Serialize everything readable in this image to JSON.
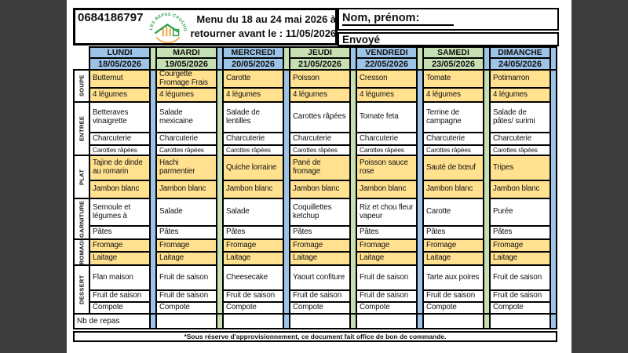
{
  "header": {
    "phone": "0684186797",
    "logo_text": "LES REPAS CAUCHOIS",
    "menu_title_line1": "Menu du 18 au 24 mai 2026 à",
    "menu_title_line2": "retourner avant le : 11/05/2026",
    "name_label": "Nom, prénom:",
    "sent_label": "Envoyé"
  },
  "colors": {
    "blue": "#9DC3E6",
    "green": "#C6E0B4",
    "yellow": "#FFE18F",
    "white": "#FFFFFF",
    "backdrop": "#3C3C3C",
    "border": "#000000",
    "logo_green": "#2F9E49",
    "logo_orange": "#F2A33C"
  },
  "days": [
    {
      "name": "LUNDI",
      "date": "18/05/2026",
      "color": "blue"
    },
    {
      "name": "MARDI",
      "date": "19/05/2026",
      "color": "green"
    },
    {
      "name": "MERCREDI",
      "date": "20/05/2026",
      "color": "blue"
    },
    {
      "name": "JEUDI",
      "date": "21/05/2026",
      "color": "green"
    },
    {
      "name": "VENDREDI",
      "date": "22/05/2026",
      "color": "blue"
    },
    {
      "name": "SAMEDI",
      "date": "23/05/2026",
      "color": "green"
    },
    {
      "name": "DIMANCHE",
      "date": "24/05/2026",
      "color": "blue"
    }
  ],
  "sections": [
    {
      "label": "SOUPE",
      "bg": "yellow",
      "rows": [
        [
          "Butternut",
          "Courgette Fromage Frais",
          "Carotte",
          "Poisson",
          "Cresson",
          "Tomate",
          "Potimarron"
        ],
        [
          "4 légumes",
          "4 légumes",
          "4 légumes",
          "4 légumes",
          "4 légumes",
          "4 légumes",
          "4 légumes"
        ]
      ]
    },
    {
      "label": "ENTREE",
      "bg": "white",
      "rows": [
        [
          "Betteraves vinaigrette",
          "Salade mexicaine",
          "Salade de lentilles",
          "Carottes râpées",
          "Tomate feta",
          "Terrine de campagne",
          "Salade de pâtes/ surimi"
        ],
        [
          "Charcuterie",
          "Charcuterie",
          "Charcuterie",
          "Charcuterie",
          "Charcuterie",
          "Charcuterie",
          "Charcuterie"
        ],
        [
          "Carottes râpées",
          "Carottes râpées",
          "Carottes râpées",
          "Carottes râpées",
          "Carottes râpées",
          "Carottes râpées",
          "Carottes râpées"
        ]
      ]
    },
    {
      "label": "PLAT",
      "bg": "yellow",
      "rows": [
        [
          "Tajine de dinde au romarin",
          "Hachi parmentier",
          "Quiche lorraine",
          "Pané de fromage",
          "Poisson sauce rose",
          "Sauté de bœuf",
          "Tripes"
        ],
        [
          "Jambon blanc",
          "Jambon blanc",
          "Jambon blanc",
          "Jambon blanc",
          "Jambon blanc",
          "Jambon blanc",
          "Jambon blanc"
        ]
      ]
    },
    {
      "label": "GARNITURE",
      "bg": "white",
      "rows": [
        [
          "Semoule et légumes à",
          "Salade",
          "Salade",
          "Coquillettes ketchup",
          "Riz et chou fleur vapeur",
          "Carotte",
          "Purée"
        ],
        [
          "Pâtes",
          "Pâtes",
          "Pâtes",
          "Pâtes",
          "Pâtes",
          "Pâtes",
          "Pâtes"
        ]
      ]
    },
    {
      "label": "FROMAGE",
      "bg": "yellow",
      "rows": [
        [
          "Fromage",
          "Fromage",
          "Fromage",
          "Fromage",
          "Fromage",
          "Fromage",
          "Fromage"
        ],
        [
          "Laitage",
          "Laitage",
          "Laitage",
          "Laitage",
          "Laitage",
          "Laitage",
          "Laitage"
        ]
      ]
    },
    {
      "label": "DESSERT",
      "bg": "white",
      "rows": [
        [
          "Flan maison",
          "Fruit de saison",
          "Cheesecake",
          "Yaourt confiture",
          "Fruit de saison",
          "Tarte aux poires",
          "Fruit de saison"
        ],
        [
          "Fruit de saison",
          "Fruit de saison",
          "Fruit de saison",
          "Fruit de saison",
          "Fruit de saison",
          "Fruit de saison",
          "Fruit de saison"
        ],
        [
          "Compote",
          "Compote",
          "Compote",
          "Compote",
          "Compote",
          "Compote",
          "Compote"
        ]
      ]
    }
  ],
  "footer": {
    "nb_repas_label": "Nb de repas",
    "footnote": "*Sous réserve d'approvisionnement, ce document fait office de bon de commande."
  }
}
